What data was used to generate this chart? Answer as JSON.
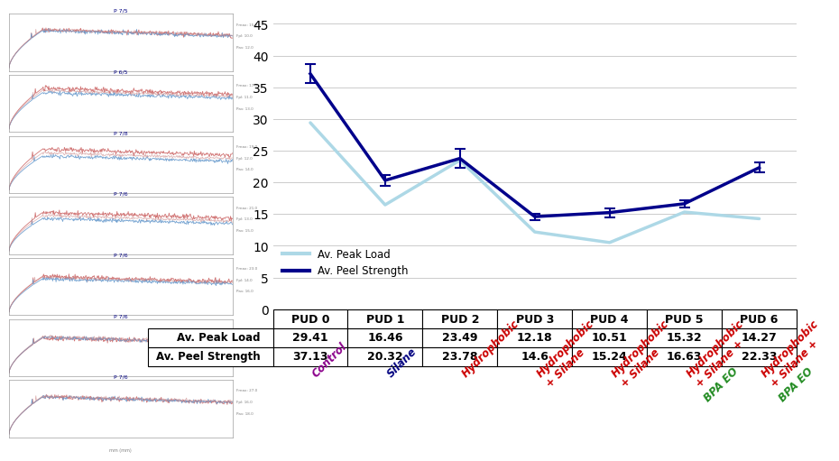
{
  "categories": [
    "PUD 0",
    "PUD 1",
    "PUD 2",
    "PUD 3",
    "PUD 4",
    "PUD 5",
    "PUD 6"
  ],
  "peak_load": [
    29.41,
    16.46,
    23.49,
    12.18,
    10.51,
    15.32,
    14.27
  ],
  "peel_strength": [
    37.13,
    20.32,
    23.78,
    14.6,
    15.24,
    16.63,
    22.33
  ],
  "peel_strength_errors": [
    1.5,
    0.8,
    1.5,
    0.5,
    0.7,
    0.6,
    0.8
  ],
  "line1_color": "#add8e6",
  "line2_color": "#00008b",
  "ylim": [
    0,
    45
  ],
  "yticks": [
    0,
    5,
    10,
    15,
    20,
    25,
    30,
    35,
    40,
    45
  ],
  "legend_label1": "Av. Peak Load",
  "legend_label2": "Av. Peel Strength",
  "thumb_titles": [
    "P 7/5",
    "P 6/5",
    "P 7/8",
    "P 7/6",
    "P 7/6",
    "P 7/6",
    "P 7/6"
  ],
  "label_info": [
    {
      "text": "Control",
      "color": "#8B008B",
      "green": null
    },
    {
      "text": "Silane",
      "color": "#000080",
      "green": null
    },
    {
      "text": "Hydrophobic",
      "color": "#cc0000",
      "green": null
    },
    {
      "text": "Hydrophobic\n+ Silane",
      "color": "#cc0000",
      "green": null
    },
    {
      "text": "Hydrophobic\n+ Silane",
      "color": "#cc0000",
      "green": null
    },
    {
      "text": "Hydrophobic\n+ Silane +",
      "color": "#cc0000",
      "green": "BPA EO"
    },
    {
      "text": "Hydrophobic\n+ Silane +",
      "color": "#cc0000",
      "green": "BPA EO"
    }
  ]
}
